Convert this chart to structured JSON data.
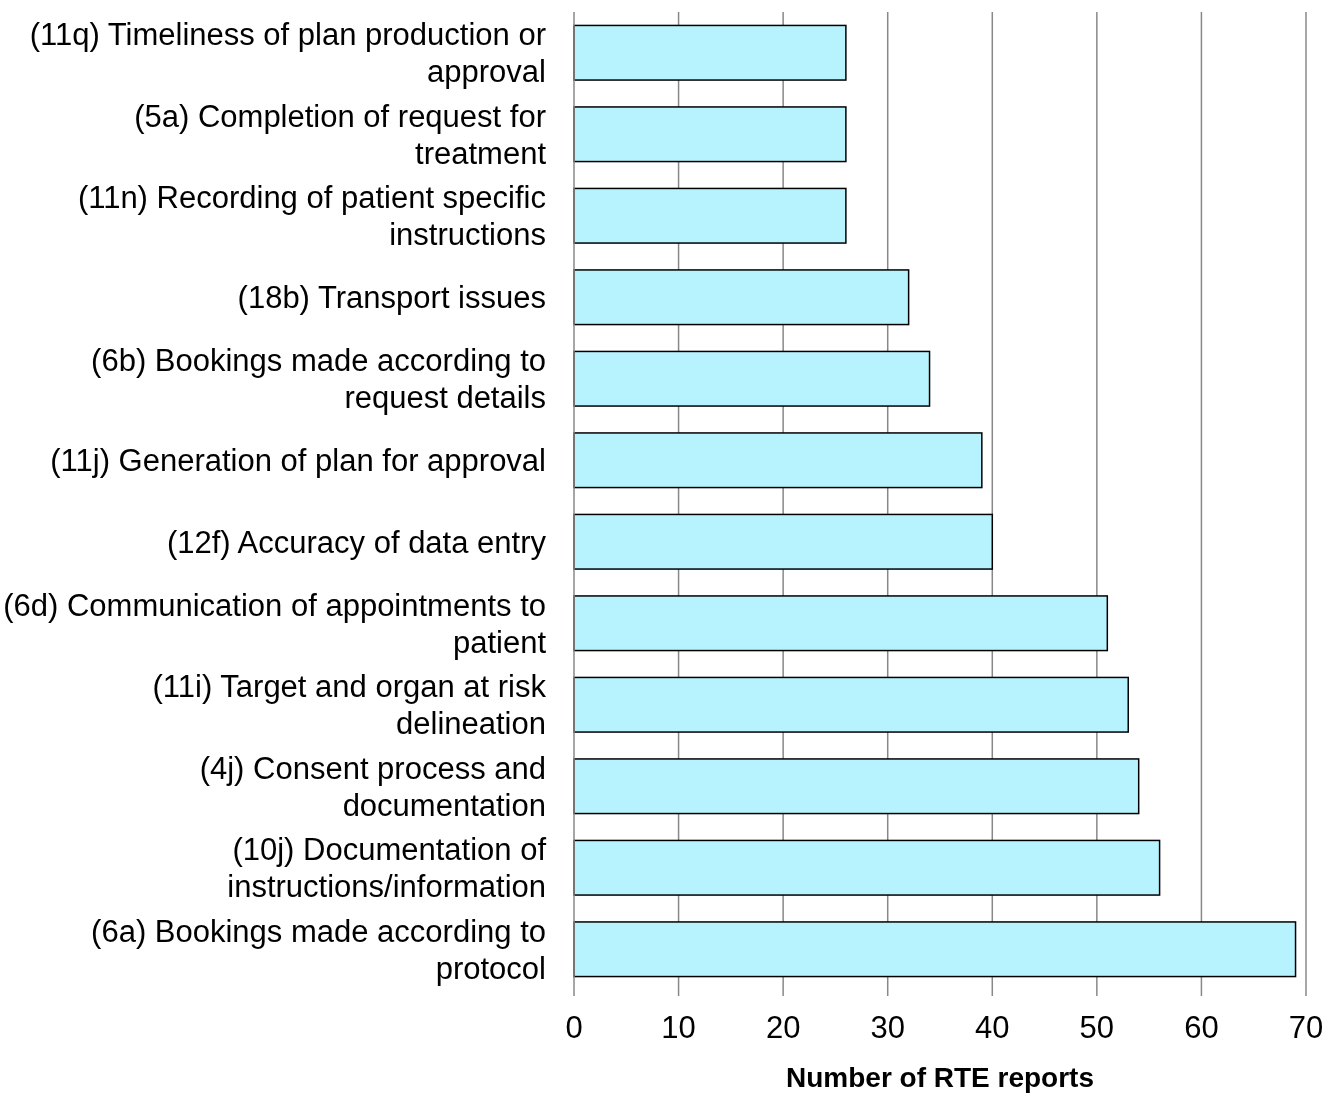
{
  "chart_data": {
    "type": "bar",
    "orientation": "horizontal",
    "xlabel": "Number of RTE reports",
    "categories": [
      "(11q) Timeliness of plan production or approval",
      "(5a) Completion of request for treatment",
      "(11n) Recording of patient specific instructions",
      "(18b) Transport issues",
      "(6b) Bookings made according to request details",
      "(11j) Generation of plan for approval",
      "(12f) Accuracy of data entry",
      "(6d) Communication of appointments to patient",
      "(11i) Target and organ at risk delineation",
      "(4j) Consent process and documentation",
      "(10j) Documentation of instructions/information",
      "(6a) Bookings made according to protocol"
    ],
    "values": [
      26,
      26,
      26,
      32,
      34,
      39,
      40,
      51,
      53,
      54,
      56,
      69
    ],
    "color": "#b7f3fe",
    "xlim": [
      0,
      70
    ],
    "xticks": [
      0,
      10,
      20,
      30,
      40,
      50,
      60,
      70
    ],
    "grid": "x"
  }
}
